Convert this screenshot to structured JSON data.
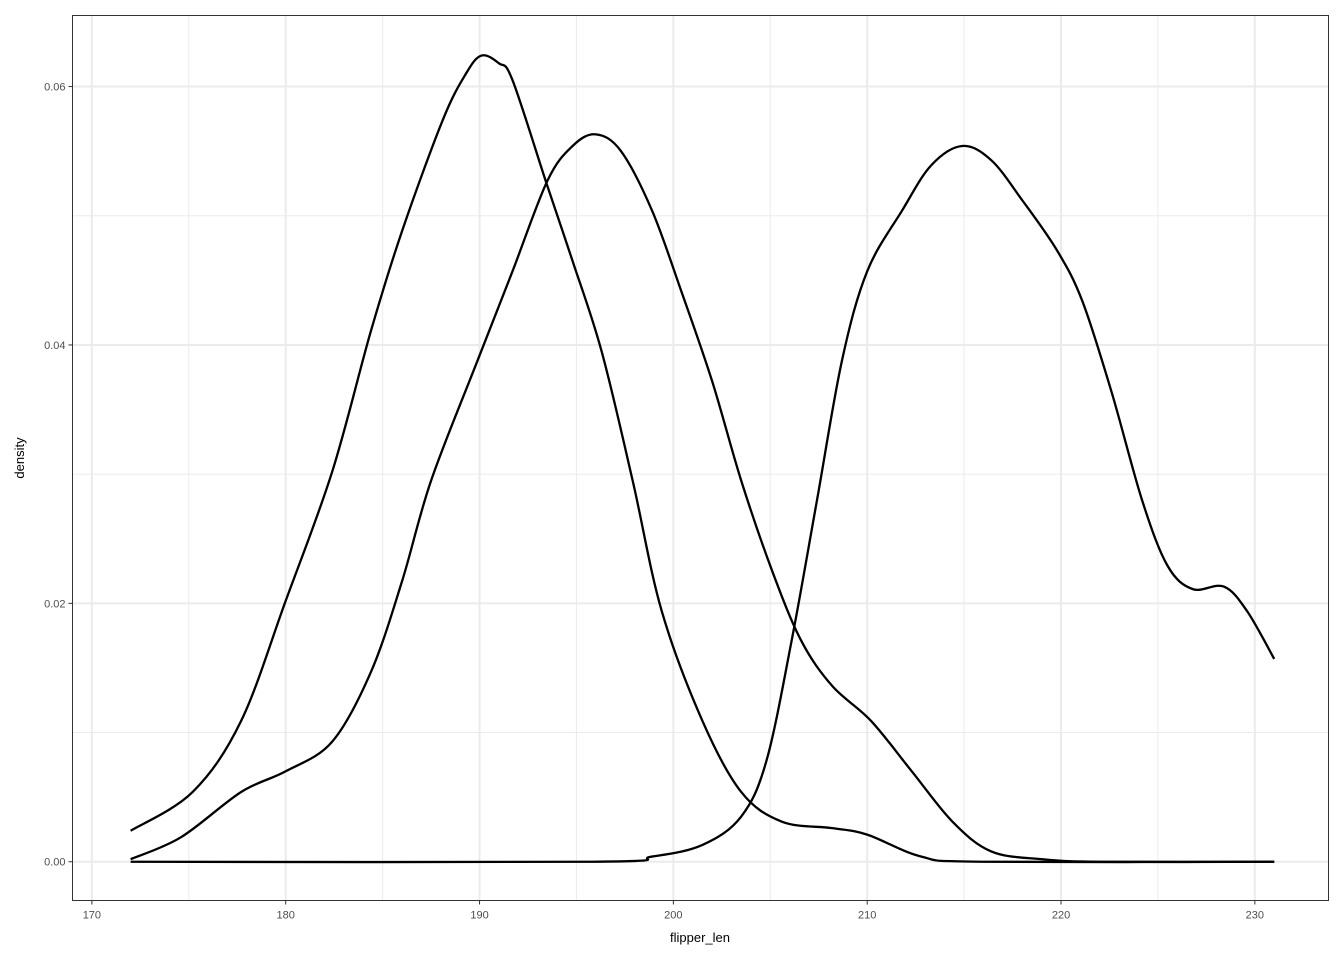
{
  "chart_data": {
    "type": "line",
    "xlabel": "flipper_len",
    "ylabel": "density",
    "xlim": [
      169,
      233.8
    ],
    "ylim": [
      -0.003,
      0.0655
    ],
    "x_ticks": [
      170,
      180,
      190,
      200,
      210,
      220,
      230
    ],
    "x_tick_labels": [
      "170",
      "180",
      "190",
      "200",
      "210",
      "220",
      "230"
    ],
    "y_ticks": [
      0,
      0.02,
      0.04,
      0.06
    ],
    "y_tick_labels": [
      "0.00",
      "0.02",
      "0.04",
      "0.06"
    ],
    "grid": true,
    "line_color": "#000000",
    "series": [
      {
        "points": [
          [
            172,
            0.0024
          ],
          [
            175.2,
            0.0054
          ],
          [
            177.7,
            0.0109
          ],
          [
            180,
            0.0202
          ],
          [
            182.4,
            0.0302
          ],
          [
            184.4,
            0.0411
          ],
          [
            186,
            0.0488
          ],
          [
            188.1,
            0.0574
          ],
          [
            189.3,
            0.061
          ],
          [
            190.1,
            0.0624
          ],
          [
            191,
            0.0618
          ],
          [
            191.7,
            0.0605
          ],
          [
            193.5,
            0.0523
          ],
          [
            194.8,
            0.0465
          ],
          [
            196.3,
            0.0395
          ],
          [
            197.9,
            0.0295
          ],
          [
            199.4,
            0.0194
          ],
          [
            201.5,
            0.0109
          ],
          [
            203.5,
            0.0054
          ],
          [
            205.6,
            0.0031
          ],
          [
            208.2,
            0.0026
          ],
          [
            210,
            0.0021
          ],
          [
            212.8,
            0.0004
          ],
          [
            215.9,
            0
          ],
          [
            231,
            0
          ]
        ]
      },
      {
        "points": [
          [
            172,
            0.0002
          ],
          [
            174.6,
            0.0019
          ],
          [
            177.7,
            0.0054
          ],
          [
            180,
            0.007
          ],
          [
            182.4,
            0.0093
          ],
          [
            184.4,
            0.0147
          ],
          [
            186,
            0.0217
          ],
          [
            187.5,
            0.0295
          ],
          [
            189.9,
            0.0388
          ],
          [
            191.7,
            0.0457
          ],
          [
            193.5,
            0.0527
          ],
          [
            194.8,
            0.0554
          ],
          [
            196,
            0.0563
          ],
          [
            197.3,
            0.055
          ],
          [
            198.9,
            0.0504
          ],
          [
            200.4,
            0.0442
          ],
          [
            202,
            0.0372
          ],
          [
            203.5,
            0.0295
          ],
          [
            205.1,
            0.0225
          ],
          [
            206.6,
            0.0171
          ],
          [
            208.2,
            0.0136
          ],
          [
            210.2,
            0.0109
          ],
          [
            212.3,
            0.007
          ],
          [
            214.4,
            0.0031
          ],
          [
            216.4,
            0.0008
          ],
          [
            219,
            0.0002
          ],
          [
            222.1,
            0
          ],
          [
            231,
            0
          ]
        ]
      },
      {
        "points": [
          [
            172,
            0
          ],
          [
            195.8,
            0
          ],
          [
            198.9,
            0.0004
          ],
          [
            201.5,
            0.0013
          ],
          [
            203.5,
            0.0035
          ],
          [
            204.8,
            0.0078
          ],
          [
            206.1,
            0.0171
          ],
          [
            207.4,
            0.0279
          ],
          [
            208.7,
            0.0388
          ],
          [
            210,
            0.0457
          ],
          [
            211.8,
            0.0504
          ],
          [
            213.3,
            0.0539
          ],
          [
            214.9,
            0.0554
          ],
          [
            216.4,
            0.0543
          ],
          [
            218,
            0.0512
          ],
          [
            219.8,
            0.0473
          ],
          [
            221.1,
            0.0434
          ],
          [
            222.6,
            0.0364
          ],
          [
            224.2,
            0.0279
          ],
          [
            225.5,
            0.0229
          ],
          [
            226.8,
            0.0211
          ],
          [
            228.4,
            0.0213
          ],
          [
            229.6,
            0.0194
          ],
          [
            231,
            0.0157
          ]
        ]
      }
    ]
  }
}
